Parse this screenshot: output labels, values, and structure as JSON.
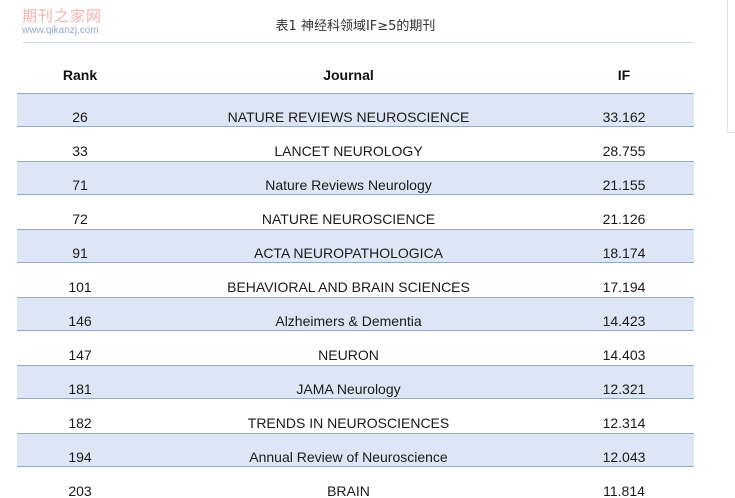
{
  "watermark": {
    "title": "期刊之家网",
    "url": "www.qikanzj.com"
  },
  "caption": "表1 神经科领域IF≥5的期刊",
  "table": {
    "headers": {
      "rank": "Rank",
      "journal": "Journal",
      "if": "IF"
    },
    "rows": [
      {
        "rank": "26",
        "journal": "NATURE REVIEWS NEUROSCIENCE",
        "if": "33.162"
      },
      {
        "rank": "33",
        "journal": "LANCET NEUROLOGY",
        "if": "28.755"
      },
      {
        "rank": "71",
        "journal": "Nature Reviews Neurology",
        "if": "21.155"
      },
      {
        "rank": "72",
        "journal": "NATURE NEUROSCIENCE",
        "if": "21.126"
      },
      {
        "rank": "91",
        "journal": "ACTA NEUROPATHOLOGICA",
        "if": "18.174"
      },
      {
        "rank": "101",
        "journal": "BEHAVIORAL AND BRAIN SCIENCES",
        "if": "17.194"
      },
      {
        "rank": "146",
        "journal": "Alzheimers & Dementia",
        "if": "14.423"
      },
      {
        "rank": "147",
        "journal": "NEURON",
        "if": "14.403"
      },
      {
        "rank": "181",
        "journal": "JAMA Neurology",
        "if": "12.321"
      },
      {
        "rank": "182",
        "journal": "TRENDS IN NEUROSCIENCES",
        "if": "12.314"
      },
      {
        "rank": "194",
        "journal": "Annual Review of Neuroscience",
        "if": "12.043"
      },
      {
        "rank": "203",
        "journal": "BRAIN",
        "if": "11.814"
      }
    ]
  },
  "colors": {
    "band_fill": "#dce6f4",
    "band_border": "#8ea9d0",
    "watermark_title": "#f2a5a1",
    "watermark_url": "#8aa3c2"
  }
}
